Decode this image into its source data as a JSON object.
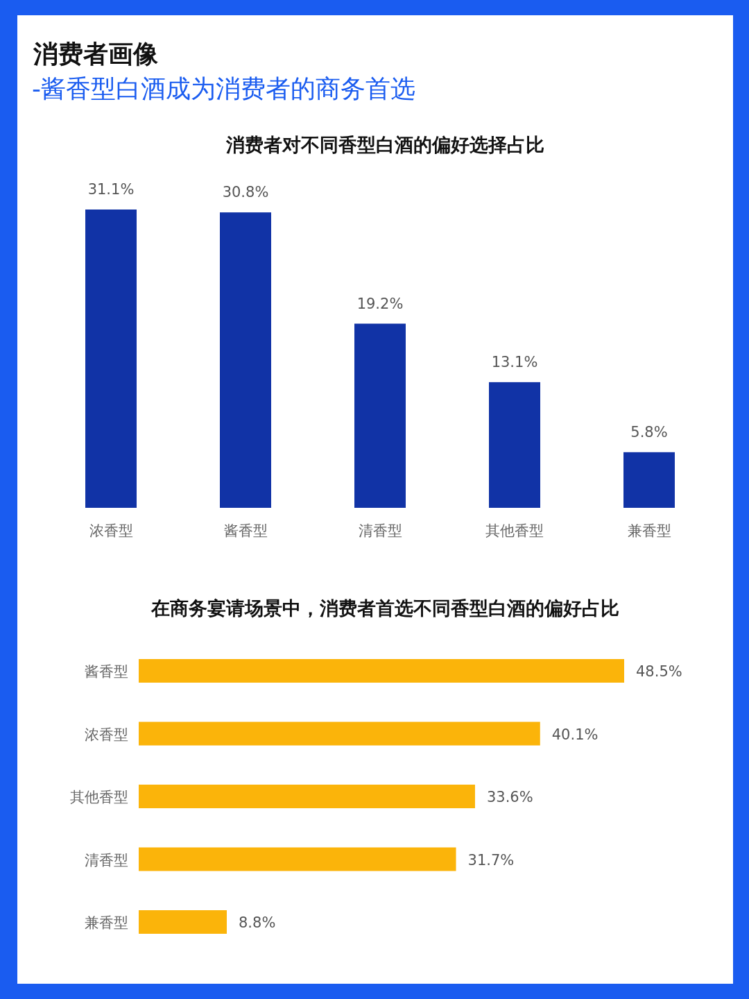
{
  "chart_data": [
    {
      "type": "other",
      "title": "消费者画像",
      "subtitle": "-酱香型白酒成为消费者的商务首选"
    },
    {
      "type": "bar",
      "title": "消费者对不同香型白酒的偏好选择占比",
      "categories": [
        "浓香型",
        "酱香型",
        "清香型",
        "其他香型",
        "兼香型"
      ],
      "series": [
        {
          "color": "#1133a6",
          "values": [
            31.1,
            30.8,
            19.2,
            13.1,
            5.8
          ],
          "value_labels": [
            "31.1%",
            "30.8%",
            "19.2%",
            "13.1%",
            "5.8%"
          ]
        }
      ]
    },
    {
      "type": "bar",
      "orientation": "horizontal",
      "title": "在商务宴请场景中，消费者首选不同香型白酒的偏好占比",
      "categories": [
        "酱香型",
        "浓香型",
        "其他香型",
        "清香型",
        "兼香型"
      ],
      "series": [
        {
          "color": "#fbb40a",
          "values": [
            48.5,
            40.1,
            33.6,
            31.7,
            8.8
          ],
          "value_labels": [
            "48.5%",
            "40.1%",
            "33.6%",
            "31.7%",
            "8.8%"
          ]
        }
      ]
    }
  ]
}
